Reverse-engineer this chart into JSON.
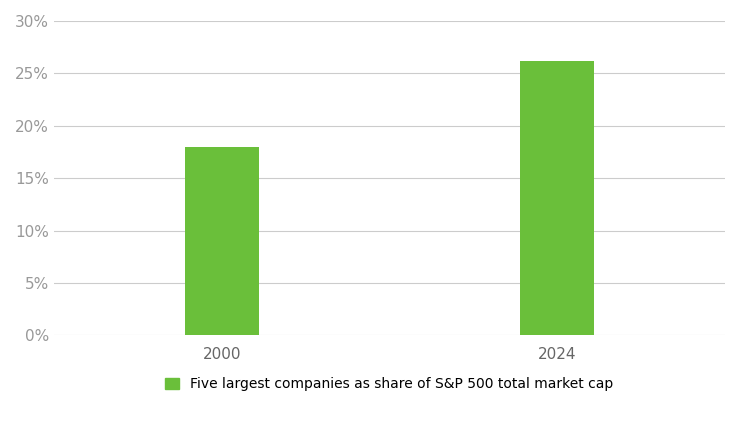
{
  "categories": [
    "2000",
    "2024"
  ],
  "values": [
    18.0,
    26.2
  ],
  "bar_color": "#6abf3a",
  "background_color": "#ffffff",
  "ylim": [
    0,
    0.3
  ],
  "yticks": [
    0.0,
    0.05,
    0.1,
    0.15,
    0.2,
    0.25,
    0.3
  ],
  "ytick_labels": [
    "0%",
    "5%",
    "10%",
    "15%",
    "20%",
    "25%",
    "30%"
  ],
  "legend_label": "Five largest companies as share of S&P 500 total market cap",
  "grid_color": "#cccccc",
  "label_fontsize": 11,
  "legend_fontsize": 10,
  "bar_width": 0.22,
  "xlim": [
    -0.5,
    1.5
  ]
}
